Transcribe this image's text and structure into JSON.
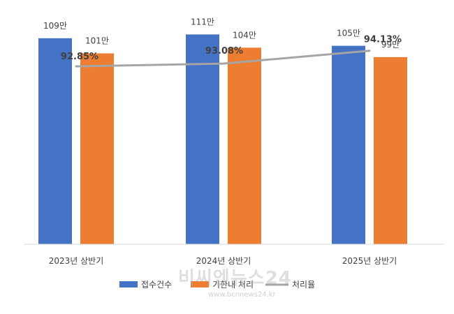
{
  "chart_data": {
    "type": "bar",
    "categories": [
      "2023년 상반기",
      "2024년 상반기",
      "2025년 상반기"
    ],
    "series": [
      {
        "name": "접수건수",
        "values": [
          109,
          111,
          105
        ],
        "labels": [
          "109만",
          "111만",
          "105만"
        ],
        "color": "#4472C4"
      },
      {
        "name": "기한내 처리",
        "values": [
          101,
          104,
          99
        ],
        "labels": [
          "101만",
          "104만",
          "99만"
        ],
        "color": "#ED7D31"
      }
    ],
    "line_series": {
      "name": "처리율",
      "values": [
        92.85,
        93.08,
        94.13
      ],
      "labels": [
        "92.85%",
        "93.08%",
        "94.13%"
      ],
      "color": "#A5A5A5"
    },
    "ylim": [
      0,
      120
    ],
    "line_ylim": [
      88,
      96
    ],
    "legend_position": "bottom",
    "grid": false
  },
  "watermark": {
    "text": "비씨엔뉴스24",
    "url": "www.bcnnews24.kr"
  }
}
